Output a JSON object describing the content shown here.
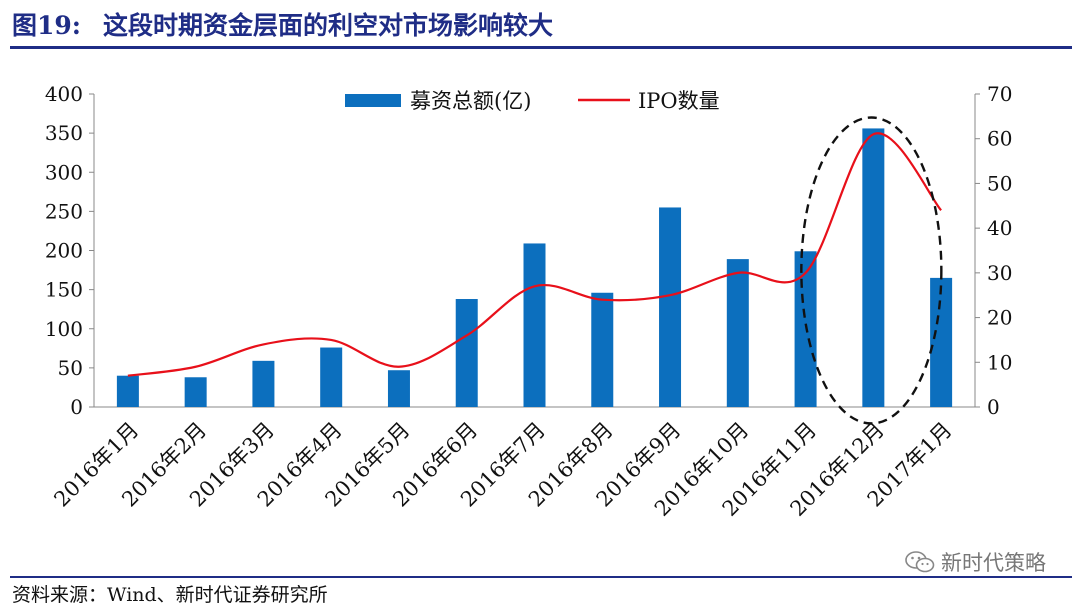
{
  "figure": {
    "label": "图19:",
    "title": "这段时期资金层面的利空对市场影响较大"
  },
  "source": "资料来源：Wind、新时代证券研究所",
  "watermark": "新时代策略",
  "chart_data": {
    "type": "bar+line",
    "categories": [
      "2016年1月",
      "2016年2月",
      "2016年3月",
      "2016年4月",
      "2016年5月",
      "2016年6月",
      "2016年7月",
      "2016年8月",
      "2016年9月",
      "2016年10月",
      "2016年11月",
      "2016年12月",
      "2017年1月"
    ],
    "series": [
      {
        "name": "募资总额(亿)",
        "type": "bar",
        "axis": "left",
        "color": "#0c6fbe",
        "values": [
          40,
          38,
          59,
          76,
          47,
          138,
          209,
          146,
          255,
          189,
          199,
          356,
          165
        ]
      },
      {
        "name": "IPO数量",
        "type": "line",
        "axis": "right",
        "color": "#e8101a",
        "values": [
          7,
          9,
          14,
          15,
          9,
          16,
          27,
          24,
          25,
          30,
          30,
          61,
          44
        ]
      }
    ],
    "y_left": {
      "min": 0,
      "max": 400,
      "ticks": [
        0,
        50,
        100,
        150,
        200,
        250,
        300,
        350,
        400
      ]
    },
    "y_right": {
      "min": 0,
      "max": 70,
      "ticks": [
        0,
        10,
        20,
        30,
        40,
        50,
        60,
        70
      ]
    },
    "legend_position": "top-center",
    "grid": false,
    "annotation": "dashed ellipse highlighting 2016年12月"
  }
}
